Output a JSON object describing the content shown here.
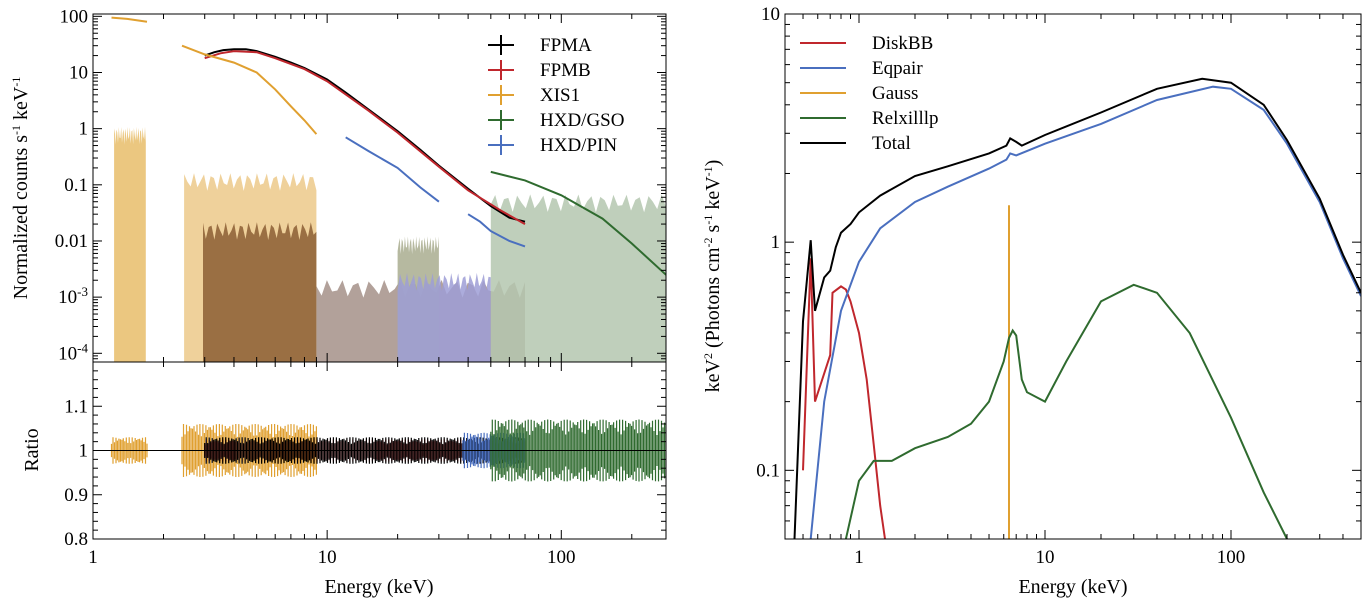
{
  "chart_data": [
    {
      "id": "counts",
      "type": "line",
      "xlabel": "",
      "ylabel_parts": [
        "Normalized counts s",
        "-1",
        " keV",
        "-1"
      ],
      "xscale": "log",
      "yscale": "log",
      "xlim": [
        1,
        280
      ],
      "ylim": [
        7e-05,
        110
      ],
      "yticks": [
        {
          "v": 100,
          "t": "100"
        },
        {
          "v": 10,
          "t": "10"
        },
        {
          "v": 1,
          "t": "1"
        },
        {
          "v": 0.1,
          "t": "0.1"
        },
        {
          "v": 0.01,
          "t": "0.01"
        },
        {
          "v": 0.001,
          "t": "10",
          "sup": "-3"
        },
        {
          "v": 0.0001,
          "t": "10",
          "sup": "-4"
        }
      ],
      "legend_position": "top-right",
      "series": [
        {
          "name": "FPMA",
          "color": "#000000",
          "points": [
            [
              3,
              20
            ],
            [
              3.3,
              23
            ],
            [
              3.6,
              25
            ],
            [
              4,
              26
            ],
            [
              4.5,
              26
            ],
            [
              5,
              24
            ],
            [
              6,
              19
            ],
            [
              7,
              15
            ],
            [
              8,
              12
            ],
            [
              10,
              7.5
            ],
            [
              12,
              4.4
            ],
            [
              15,
              2.2
            ],
            [
              20,
              0.9
            ],
            [
              25,
              0.42
            ],
            [
              30,
              0.22
            ],
            [
              40,
              0.085
            ],
            [
              50,
              0.042
            ],
            [
              60,
              0.026
            ],
            [
              70,
              0.022
            ]
          ]
        },
        {
          "name": "FPMB",
          "color": "#c0272d",
          "points": [
            [
              3,
              18
            ],
            [
              3.5,
              22
            ],
            [
              4,
              24
            ],
            [
              5,
              23
            ],
            [
              6,
              18
            ],
            [
              8,
              11.5
            ],
            [
              10,
              7
            ],
            [
              15,
              2.1
            ],
            [
              20,
              0.85
            ],
            [
              30,
              0.21
            ],
            [
              40,
              0.08
            ],
            [
              55,
              0.035
            ],
            [
              70,
              0.02
            ]
          ]
        },
        {
          "name": "XIS1",
          "color": "#e0a030",
          "segments": [
            [
              [
                1.2,
                95
              ],
              [
                1.4,
                90
              ],
              [
                1.7,
                80
              ]
            ],
            [
              [
                2.4,
                30
              ],
              [
                3,
                21
              ],
              [
                4,
                15
              ],
              [
                5,
                10
              ],
              [
                6,
                5
              ],
              [
                7,
                2.5
              ],
              [
                8,
                1.4
              ],
              [
                9,
                0.8
              ]
            ]
          ]
        },
        {
          "name": "HXD/GSO",
          "color": "#2f6b2f",
          "points": [
            [
              50,
              0.17
            ],
            [
              70,
              0.12
            ],
            [
              100,
              0.065
            ],
            [
              150,
              0.025
            ],
            [
              200,
              0.009
            ],
            [
              280,
              0.0025
            ]
          ]
        },
        {
          "name": "HXD/PIN",
          "color": "#4a6fbf",
          "segments": [
            [
              [
                12,
                0.7
              ],
              [
                15,
                0.4
              ],
              [
                20,
                0.2
              ],
              [
                25,
                0.09
              ],
              [
                30,
                0.05
              ]
            ],
            [
              [
                40,
                0.03
              ],
              [
                45,
                0.022
              ],
              [
                50,
                0.015
              ],
              [
                60,
                0.01
              ],
              [
                70,
                0.008
              ]
            ]
          ]
        }
      ],
      "fill_levels": [
        {
          "color": "#e8bd6a",
          "from": 1.23,
          "to": 1.68,
          "level": 0.8
        },
        {
          "color": "#ecc98a",
          "from": 2.45,
          "to": 9.0,
          "level": 0.12
        },
        {
          "color": "#8b5e34",
          "from": 2.95,
          "to": 9.0,
          "level": 0.016
        },
        {
          "color": "#a59088",
          "from": 9.0,
          "to": 70.0,
          "level": 0.0015
        },
        {
          "color": "#a9ad8f",
          "from": 20.0,
          "to": 30.0,
          "level": 0.009
        },
        {
          "color": "#9e9ed6",
          "from": 20.0,
          "to": 50.0,
          "level": 0.002
        },
        {
          "color": "#b4c7af",
          "from": 50.0,
          "to": 280.0,
          "level": 0.05
        }
      ]
    },
    {
      "id": "ratio",
      "type": "line",
      "xlabel": "Energy (keV)",
      "ylabel": "Ratio",
      "xscale": "log",
      "yscale": "linear",
      "xlim": [
        1,
        280
      ],
      "ylim": [
        0.8,
        1.2
      ],
      "xticks": [
        {
          "v": 1,
          "t": "1"
        },
        {
          "v": 10,
          "t": "10"
        },
        {
          "v": 100,
          "t": "100"
        }
      ],
      "yticks": [
        {
          "v": 1.1,
          "t": "1.1"
        },
        {
          "v": 1,
          "t": "1"
        },
        {
          "v": 0.9,
          "t": "0.9"
        },
        {
          "v": 0.8,
          "t": "0.8"
        }
      ],
      "reference_line": 1.0,
      "residual_bands": [
        {
          "color": "#e0a030",
          "from": 1.2,
          "to": 1.7,
          "amp": 0.03
        },
        {
          "color": "#e0a030",
          "from": 2.4,
          "to": 9.0,
          "amp": 0.06
        },
        {
          "color": "#c0272d",
          "from": 3.0,
          "to": 70.0,
          "amp": 0.025
        },
        {
          "color": "#000000",
          "from": 3.0,
          "to": 70.0,
          "amp": 0.03
        },
        {
          "color": "#4a6fbf",
          "from": 38.0,
          "to": 70.0,
          "amp": 0.04
        },
        {
          "color": "#2f6b2f",
          "from": 50.0,
          "to": 280.0,
          "amp": 0.07
        }
      ]
    },
    {
      "id": "model",
      "type": "line",
      "xlabel": "Energy (keV)",
      "ylabel_parts": [
        "keV",
        "2",
        " (Photons cm",
        "-2",
        " s",
        "-1",
        " keV",
        "-1",
        ")"
      ],
      "xscale": "log",
      "yscale": "log",
      "xlim": [
        0.4,
        500
      ],
      "ylim": [
        0.05,
        10
      ],
      "xticks": [
        {
          "v": 1,
          "t": "1"
        },
        {
          "v": 10,
          "t": "10"
        },
        {
          "v": 100,
          "t": "100"
        }
      ],
      "yticks": [
        {
          "v": 10,
          "t": "10"
        },
        {
          "v": 1,
          "t": "1"
        },
        {
          "v": 0.1,
          "t": "0.1"
        }
      ],
      "legend_position": "top-left",
      "series": [
        {
          "name": "DiskBB",
          "color": "#c0272d",
          "points": [
            [
              0.5,
              0.1
            ],
            [
              0.55,
              0.85
            ],
            [
              0.58,
              0.2
            ],
            [
              0.7,
              0.32
            ],
            [
              0.72,
              0.6
            ],
            [
              0.8,
              0.64
            ],
            [
              0.85,
              0.62
            ],
            [
              0.9,
              0.55
            ],
            [
              1.0,
              0.4
            ],
            [
              1.1,
              0.25
            ],
            [
              1.2,
              0.13
            ],
            [
              1.3,
              0.07
            ],
            [
              1.38,
              0.05
            ]
          ]
        },
        {
          "name": "Eqpair",
          "color": "#4a6fbf",
          "points": [
            [
              0.55,
              0.05
            ],
            [
              0.65,
              0.2
            ],
            [
              0.8,
              0.5
            ],
            [
              1,
              0.82
            ],
            [
              1.3,
              1.15
            ],
            [
              2,
              1.5
            ],
            [
              3,
              1.75
            ],
            [
              5,
              2.1
            ],
            [
              6.2,
              2.3
            ],
            [
              6.5,
              2.45
            ],
            [
              7,
              2.4
            ],
            [
              10,
              2.7
            ],
            [
              20,
              3.3
            ],
            [
              40,
              4.2
            ],
            [
              80,
              4.8
            ],
            [
              100,
              4.7
            ],
            [
              150,
              3.8
            ],
            [
              200,
              2.7
            ],
            [
              300,
              1.5
            ],
            [
              400,
              0.85
            ],
            [
              500,
              0.58
            ]
          ]
        },
        {
          "name": "Gauss",
          "color": "#e0a030",
          "points": [
            [
              6.4,
              0.05
            ],
            [
              6.4,
              1.45
            ]
          ]
        },
        {
          "name": "Relxilllp",
          "color": "#2f6b2f",
          "points": [
            [
              0.85,
              0.05
            ],
            [
              1,
              0.09
            ],
            [
              1.2,
              0.11
            ],
            [
              1.5,
              0.11
            ],
            [
              2,
              0.125
            ],
            [
              3,
              0.14
            ],
            [
              4,
              0.16
            ],
            [
              5,
              0.2
            ],
            [
              6,
              0.3
            ],
            [
              6.4,
              0.38
            ],
            [
              6.7,
              0.41
            ],
            [
              7,
              0.39
            ],
            [
              7.5,
              0.25
            ],
            [
              8,
              0.22
            ],
            [
              10,
              0.2
            ],
            [
              13,
              0.3
            ],
            [
              20,
              0.55
            ],
            [
              30,
              0.65
            ],
            [
              40,
              0.6
            ],
            [
              60,
              0.4
            ],
            [
              100,
              0.17
            ],
            [
              150,
              0.08
            ],
            [
              200,
              0.05
            ]
          ]
        },
        {
          "name": "Total",
          "color": "#000000",
          "points": [
            [
              0.45,
              0.05
            ],
            [
              0.5,
              0.45
            ],
            [
              0.55,
              1.02
            ],
            [
              0.58,
              0.5
            ],
            [
              0.65,
              0.7
            ],
            [
              0.7,
              0.75
            ],
            [
              0.75,
              0.95
            ],
            [
              0.8,
              1.1
            ],
            [
              0.85,
              1.15
            ],
            [
              0.9,
              1.2
            ],
            [
              1,
              1.35
            ],
            [
              1.3,
              1.6
            ],
            [
              2,
              1.95
            ],
            [
              3,
              2.15
            ],
            [
              5,
              2.45
            ],
            [
              6.2,
              2.65
            ],
            [
              6.5,
              2.85
            ],
            [
              7,
              2.75
            ],
            [
              7.5,
              2.65
            ],
            [
              10,
              2.95
            ],
            [
              20,
              3.7
            ],
            [
              40,
              4.7
            ],
            [
              70,
              5.2
            ],
            [
              100,
              5.0
            ],
            [
              150,
              4.0
            ],
            [
              200,
              2.8
            ],
            [
              300,
              1.55
            ],
            [
              400,
              0.88
            ],
            [
              500,
              0.6
            ]
          ]
        }
      ]
    }
  ]
}
